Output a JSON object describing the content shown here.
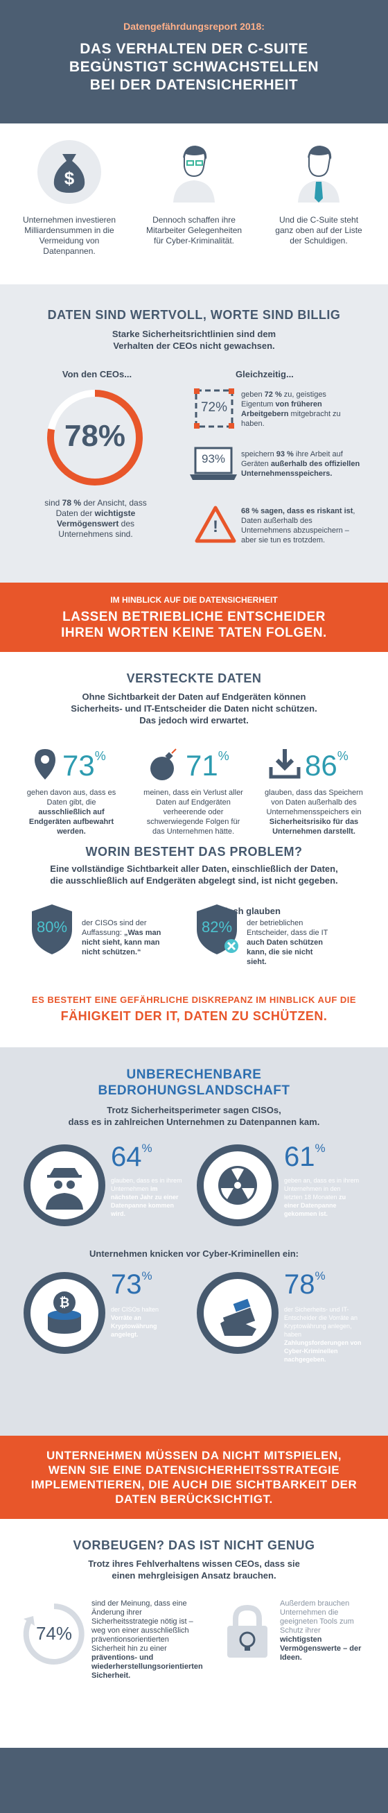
{
  "header": {
    "kicker": "Datengefährdungsreport 2018:",
    "title_lines": [
      "DAS VERHALTEN DER C-SUITE",
      "BEGÜNSTIGT SCHWACHSTELLEN",
      "BEI DER DATENSICHERHEIT"
    ]
  },
  "intro": {
    "items": [
      {
        "text": "Unternehmen investieren Milliardensummen in die Vermeidung von Datenpannen."
      },
      {
        "text": "Dennoch schaffen ihre Mitarbeiter Gelegenheiten für Cyber-Kriminalität."
      },
      {
        "text": "Und die C-Suite steht ganz oben auf der Liste der Schuldigen."
      }
    ]
  },
  "s2": {
    "title": "DATEN SIND WERTVOLL, WORTE SIND BILLIG",
    "subtitle_lines": [
      "Starke Sicherheitsrichtlinien sind dem",
      "Verhalten der CEOs nicht gewachsen."
    ],
    "left_head": "Von den CEOs...",
    "right_head": "Gleichzeitig...",
    "big_pct": "78%",
    "big_text_a": "sind ",
    "big_text_b": "78 %",
    "big_text_c": " der Ansicht, dass Daten der ",
    "big_text_d": "wichtigste Vermögenswert",
    "big_text_e": " des Unternehmens sind.",
    "rows": [
      {
        "icon": "72%",
        "a": "geben ",
        "b": "72 %",
        "c": " zu, geistiges Eigentum ",
        "d": "von früheren Arbeitgebern",
        "e": " mitgebracht zu haben."
      },
      {
        "icon": "93%",
        "a": "speichern ",
        "b": "93 %",
        "c": " ihre Arbeit auf Geräten ",
        "d": "außerhalb des offiziellen Unternehmensspeichers.",
        "e": ""
      },
      {
        "icon": "!",
        "a": "",
        "b": "68 % sagen, dass es riskant ist",
        "c": ", Daten außerhalb des Unternehmens abzuspeichern – aber sie tun es trotzdem.",
        "d": "",
        "e": ""
      }
    ]
  },
  "banner1": {
    "line1": "IM HINBLICK AUF DIE DATENSICHERHEIT",
    "line2": "LASSEN BETRIEBLICHE ENTSCHEIDER",
    "line3": "IHREN WORTEN KEINE TATEN FOLGEN."
  },
  "s3": {
    "title": "VERSTECKTE DATEN",
    "subtitle_lines": [
      "Ohne Sichtbarkeit der Daten auf Endgeräten können",
      "Sicherheits- und IT-Entscheider die Daten nicht schützen.",
      "Das jedoch wird erwartet."
    ],
    "stats": [
      {
        "pct": "73",
        "pre": "gehen davon aus, dass es Daten gibt, die ",
        "bold": "ausschließlich auf Endgeräten aufbewahrt werden.",
        "post": ""
      },
      {
        "pct": "71",
        "pre": "meinen, dass ein Verlust aller Daten auf Endgeräten verheerende oder schwerwiegende Folgen für das Unternehmen hätte.",
        "bold": "",
        "post": ""
      },
      {
        "pct": "86",
        "pre": "glauben, dass das Speichern von Daten außerhalb des Unternehmensspeichers ein ",
        "bold": "Sicherheitsrisiko für das Unternehmen darstellt.",
        "post": ""
      }
    ],
    "problem_title": "WORIN BESTEHT DAS PROBLEM?",
    "problem_sub_lines": [
      "Eine vollständige Sichtbarkeit aller Daten, einschließlich der Daten,",
      "die ausschließlich auf Endgeräten abgelegt sind, ist nicht gegeben."
    ],
    "jedoch": "Jedoch glauben",
    "shield1": {
      "pct": "80%",
      "pre": "der CISOs sind der Auffassung: ",
      "bold": "„Was man nicht sieht, kann man nicht schützen.“"
    },
    "shield2": {
      "pct": "82%",
      "pre": "der betrieblichen Entscheider, dass die IT ",
      "bold": "auch Daten schützen kann, die sie nicht sieht."
    },
    "disc_line1": "ES BESTEHT EINE GEFÄHRLICHE DISKREPANZ IM HINBLICK AUF DIE",
    "disc_line2": "FÄHIGKEIT DER IT, DATEN ZU SCHÜTZEN."
  },
  "s4": {
    "title_lines": [
      "UNBERECHENBARE",
      "BEDROHUNGSLANDSCHAFT"
    ],
    "subtitle_lines": [
      "Trotz Sicherheitsperimeter sagen CISOs,",
      "dass es in zahlreichen Unternehmen zu Datenpannen kam."
    ],
    "stats_top": [
      {
        "pct": "64",
        "pre": "glauben, dass es in ihrem Unternehmen ",
        "bold": "im nächsten Jahr zu einer Datenpanne kommen wird."
      },
      {
        "pct": "61",
        "pre": "geben an, dass es in ihrem Unternehmen in den letzten 18 Monaten ",
        "bold": "zu einer Datenpanne gekommen ist."
      }
    ],
    "mid_head": "Unternehmen knicken vor Cyber-Kriminellen ein:",
    "stats_bottom": [
      {
        "pct": "73",
        "pre": "der CISOs halten ",
        "bold": "Vorräte an Kryptowährung angelegt."
      },
      {
        "pct": "78",
        "pre": "der Sicherheits- und IT-Entscheider die Vorräte an Kryptowährung anlegen, haben ",
        "bold": "Zahlungsforderungen von Cyber-Kriminellen nachgegeben."
      }
    ]
  },
  "banner2": {
    "lines": [
      "UNTERNEHMEN MÜSSEN DA NICHT MITSPIELEN,",
      "WENN SIE EINE DATENSICHERHEITSSTRATEGIE",
      "IMPLEMENTIEREN, DIE AUCH DIE SICHTBARKEIT DER",
      "DATEN BERÜCKSICHTIGT."
    ]
  },
  "s5": {
    "title": "VORBEUGEN? DAS IST NICHT GENUG",
    "subtitle_lines": [
      "Trotz ihres Fehlverhaltens wissen CEOs, dass sie",
      "einen mehrgleisigen Ansatz brauchen."
    ],
    "left_pct": "74%",
    "left_pre": "sind der Meinung, dass eine Änderung ihrer Sicherheitsstrategie nötig ist – weg von einer ausschließlich präventionsorientierten Sicherheit hin zu einer ",
    "left_bold": "präventions- und wiederherstellungsorientierten Sicherheit.",
    "right_pre": "Außerdem brauchen Unternehmen die geeigneten Tools zum Schutz ihrer ",
    "right_bold": "wichtigsten Vermögenswerte – der Ideen."
  },
  "colors": {
    "navy": "#46596e",
    "orange": "#e8562a",
    "teal": "#3a8fb0",
    "grey": "#e8ebef",
    "blue": "#2d6fb0",
    "light": "#d6dbe2",
    "threat_bg": "#7c8a9c"
  }
}
